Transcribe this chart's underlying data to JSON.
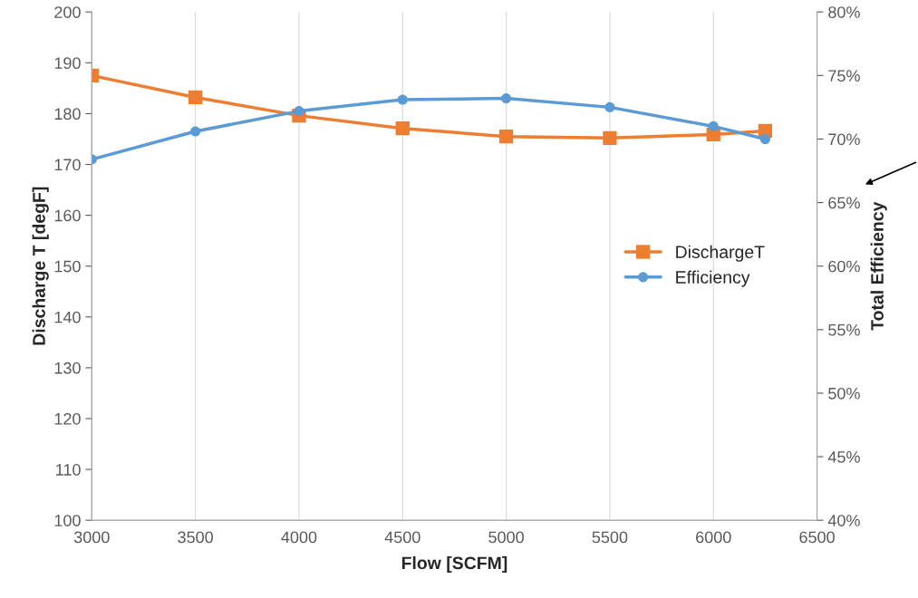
{
  "chart_data": {
    "type": "line",
    "xlabel": "Flow [SCFM]",
    "ylabel": "Discharge T [degF]",
    "y2label": "Total Efficiency",
    "x": [
      3000,
      3500,
      4000,
      4500,
      5000,
      5500,
      6000,
      6250
    ],
    "series": [
      {
        "name": "DischargeT",
        "color": "#ed7d31",
        "marker": "square",
        "values": [
          187.5,
          183.2,
          179.6,
          177.1,
          175.5,
          175.2,
          175.9,
          176.6
        ]
      },
      {
        "name": "Efficiency",
        "color": "#5b9bd5",
        "marker": "circle",
        "axis": "y2",
        "values": [
          68.4,
          70.6,
          72.2,
          73.1,
          73.2,
          72.5,
          71.0,
          70.0
        ]
      }
    ],
    "xlim": [
      3000,
      6500
    ],
    "xticks": [
      3000,
      3500,
      4000,
      4500,
      5000,
      5500,
      6000,
      6500
    ],
    "ylim": [
      100,
      200
    ],
    "yticks": [
      100,
      110,
      120,
      130,
      140,
      150,
      160,
      170,
      180,
      190,
      200
    ],
    "y2lim": [
      40,
      80
    ],
    "y2ticks": [
      {
        "value": 40,
        "label": "40%"
      },
      {
        "value": 45,
        "label": "45%"
      },
      {
        "value": 50,
        "label": "50%"
      },
      {
        "value": 55,
        "label": "55%"
      },
      {
        "value": 60,
        "label": "60%"
      },
      {
        "value": 65,
        "label": "65%"
      },
      {
        "value": 70,
        "label": "70%"
      },
      {
        "value": 75,
        "label": "75%"
      },
      {
        "value": 80,
        "label": "80%"
      }
    ],
    "grid": "x",
    "legend": "right",
    "line_style": "solid"
  }
}
